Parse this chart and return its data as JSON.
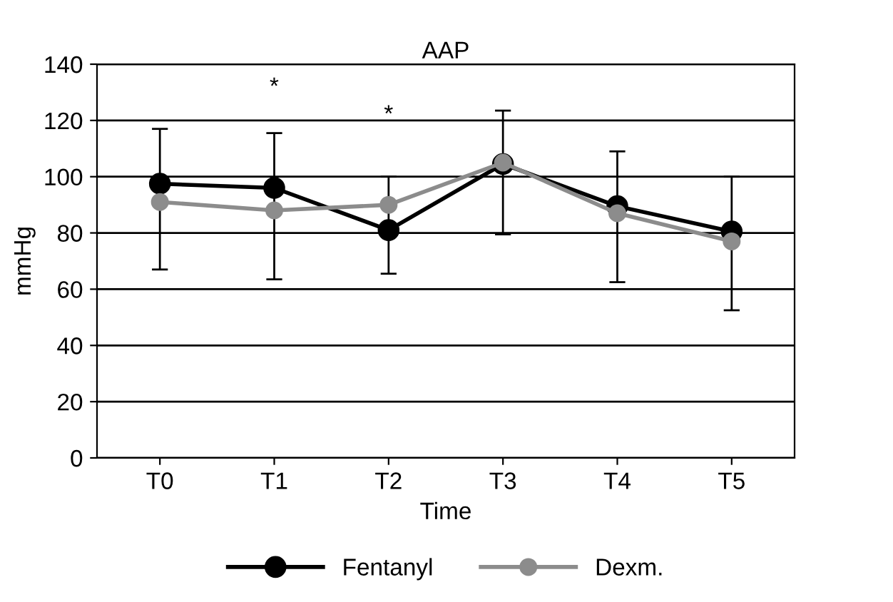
{
  "chart_data": {
    "type": "line",
    "title": "AAP",
    "xlabel": "Time",
    "ylabel": "mmHg",
    "categories": [
      "T0",
      "T1",
      "T2",
      "T3",
      "T4",
      "T5"
    ],
    "series": [
      {
        "name": "Fentanyl",
        "color": "#000000",
        "values": [
          97.5,
          96,
          81,
          104.5,
          89.5,
          80.5
        ],
        "errors": [
          [
            67,
            117
          ],
          [
            63.5,
            115.5
          ],
          [
            65.5,
            100
          ],
          [
            79.5,
            123.5
          ],
          [
            62.5,
            109
          ],
          [
            52.5,
            100
          ]
        ]
      },
      {
        "name": "Dexm.",
        "color": "#8c8c8c",
        "values": [
          91,
          88,
          90,
          105,
          87,
          77
        ]
      }
    ],
    "annotations": [
      "*",
      "*"
    ],
    "ylim": [
      0,
      140
    ],
    "yticks": [
      0,
      20,
      40,
      60,
      80,
      100,
      120,
      140
    ],
    "grid": "y",
    "legend": "bottom",
    "marker": "circle",
    "line_style": "solid"
  }
}
